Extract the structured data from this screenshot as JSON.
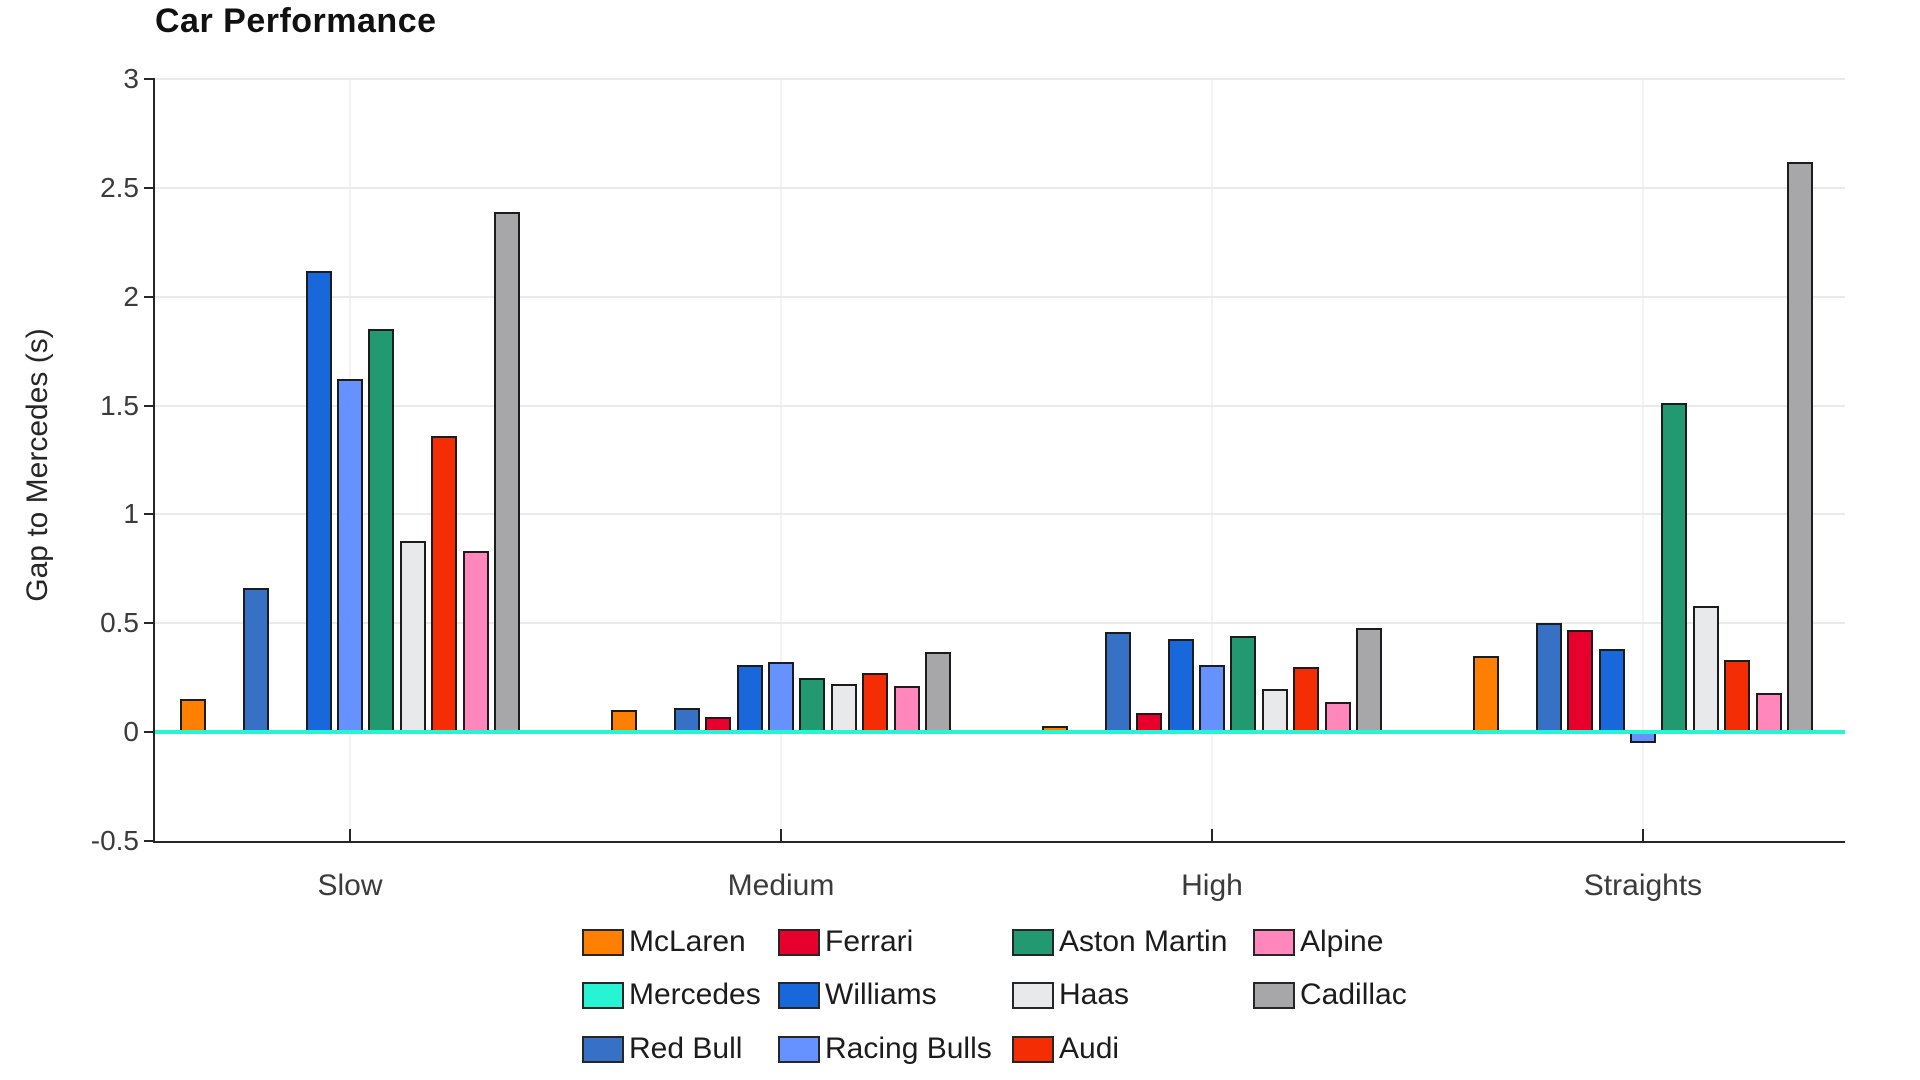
{
  "chart_data": {
    "type": "bar",
    "title": "Car Performance",
    "ylabel": "Gap to Mercedes (s)",
    "xlabel": "",
    "categories": [
      "Slow",
      "Medium",
      "High",
      "Straights"
    ],
    "ylim": [
      -0.5,
      3
    ],
    "yticks": [
      3,
      2.5,
      2,
      1.5,
      1,
      0.5,
      0,
      -0.5
    ],
    "ytick_labels": [
      "3",
      "2.5",
      "2",
      "1.5",
      "1",
      "0.5",
      "0",
      "-0.5"
    ],
    "grid": true,
    "legend_position": "below",
    "bar_order": [
      "McLaren",
      "Mercedes",
      "Red Bull",
      "Ferrari",
      "Williams",
      "Racing Bulls",
      "Aston Martin",
      "Haas",
      "Audi",
      "Alpine",
      "Cadillac"
    ],
    "legend_order": [
      "McLaren",
      "Ferrari",
      "Aston Martin",
      "Alpine",
      "Mercedes",
      "Williams",
      "Haas",
      "Cadillac",
      "Red Bull",
      "Racing Bulls",
      "Audi"
    ],
    "reference_line": {
      "series": "Mercedes",
      "value": 0,
      "color": "#27F4D2"
    },
    "series": [
      {
        "name": "McLaren",
        "color": "#FF8000",
        "values": [
          0.15,
          0.1,
          0.03,
          0.35
        ]
      },
      {
        "name": "Ferrari",
        "color": "#E8002D",
        "values": [
          0.01,
          0.07,
          0.09,
          0.47
        ]
      },
      {
        "name": "Aston Martin",
        "color": "#229971",
        "values": [
          1.85,
          0.25,
          0.44,
          1.51
        ]
      },
      {
        "name": "Alpine",
        "color": "#FF87BC",
        "values": [
          0.83,
          0.21,
          0.14,
          0.18
        ]
      },
      {
        "name": "Mercedes",
        "color": "#27F4D2",
        "values": [
          0.0,
          0.0,
          0.0,
          0.0
        ]
      },
      {
        "name": "Williams",
        "color": "#1868DB",
        "values": [
          2.12,
          0.31,
          0.43,
          0.38
        ]
      },
      {
        "name": "Haas",
        "color": "#E7E9EA",
        "values": [
          0.88,
          0.22,
          0.2,
          0.58
        ]
      },
      {
        "name": "Cadillac",
        "color": "#A7A6A9",
        "values": [
          2.39,
          0.37,
          0.48,
          2.62
        ]
      },
      {
        "name": "Red Bull",
        "color": "#3671C6",
        "values": [
          0.66,
          0.11,
          0.46,
          0.5
        ]
      },
      {
        "name": "Racing Bulls",
        "color": "#6692FF",
        "values": [
          1.62,
          0.32,
          0.31,
          -0.05
        ]
      },
      {
        "name": "Audi",
        "color": "#F52D05",
        "values": [
          1.36,
          0.27,
          0.3,
          0.33
        ]
      }
    ],
    "colors": {
      "axis": "#262626",
      "grid": "#eaeaea",
      "background": "#ffffff"
    }
  }
}
